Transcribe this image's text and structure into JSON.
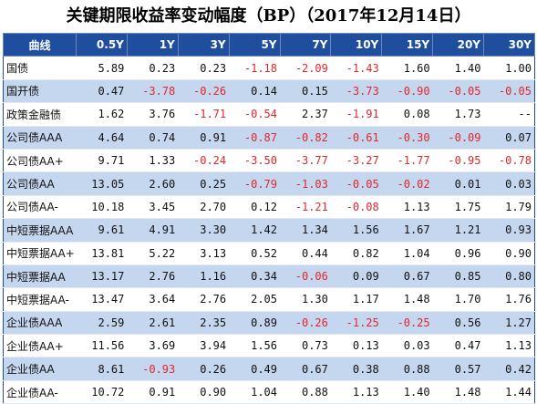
{
  "title": "关键期限收益率变动幅度（BP）（2017年12月14日）",
  "columns": [
    "曲线",
    "0.5Y",
    "1Y",
    "3Y",
    "5Y",
    "7Y",
    "10Y",
    "15Y",
    "20Y",
    "30Y"
  ],
  "rows": [
    {
      "name": "国债",
      "values": [
        "5.89",
        "0.23",
        "0.23",
        "-1.18",
        "-2.09",
        "-1.43",
        "1.60",
        "1.40",
        "1.00"
      ]
    },
    {
      "name": "国开债",
      "values": [
        "0.47",
        "-3.78",
        "-0.26",
        "0.14",
        "0.15",
        "-3.73",
        "-0.90",
        "-0.05",
        "-0.05"
      ]
    },
    {
      "name": "政策金融债",
      "values": [
        "1.62",
        "3.76",
        "-1.71",
        "-0.54",
        "2.37",
        "-1.91",
        "0.08",
        "1.73",
        "--"
      ]
    },
    {
      "name": "公司债AAA",
      "values": [
        "4.64",
        "0.74",
        "0.91",
        "-0.87",
        "-0.82",
        "-0.61",
        "-0.30",
        "-0.09",
        "0.07"
      ]
    },
    {
      "name": "公司债AA+",
      "values": [
        "9.71",
        "1.33",
        "-0.24",
        "-3.50",
        "-3.77",
        "-3.27",
        "-1.77",
        "-0.95",
        "-0.78"
      ]
    },
    {
      "name": "公司债AA",
      "values": [
        "13.05",
        "2.60",
        "0.25",
        "-0.79",
        "-1.03",
        "-0.05",
        "-0.02",
        "0.01",
        "0.03"
      ]
    },
    {
      "name": "公司债AA-",
      "values": [
        "10.18",
        "3.45",
        "2.70",
        "0.12",
        "-1.21",
        "-0.08",
        "1.13",
        "1.75",
        "1.79"
      ]
    },
    {
      "name": "中短票据AAA",
      "values": [
        "9.61",
        "4.91",
        "3.30",
        "1.42",
        "1.34",
        "1.56",
        "1.67",
        "1.21",
        "0.93"
      ]
    },
    {
      "name": "中短票据AA+",
      "values": [
        "13.81",
        "5.22",
        "3.13",
        "0.52",
        "0.44",
        "0.82",
        "1.04",
        "0.96",
        "0.90"
      ]
    },
    {
      "name": "中短票据AA",
      "values": [
        "13.17",
        "2.76",
        "1.16",
        "0.34",
        "-0.06",
        "0.09",
        "0.67",
        "0.85",
        "0.80"
      ]
    },
    {
      "name": "中短票据AA-",
      "values": [
        "13.47",
        "3.64",
        "2.76",
        "2.05",
        "1.30",
        "1.17",
        "1.48",
        "1.70",
        "1.76"
      ]
    },
    {
      "name": "企业债AAA",
      "values": [
        "2.59",
        "2.61",
        "2.35",
        "0.89",
        "-0.26",
        "-1.25",
        "-0.25",
        "0.56",
        "1.27"
      ]
    },
    {
      "name": "企业债AA+",
      "values": [
        "11.56",
        "3.69",
        "3.94",
        "1.56",
        "0.73",
        "0.13",
        "0.03",
        "0.47",
        "1.13"
      ]
    },
    {
      "name": "企业债AA",
      "values": [
        "8.61",
        "-0.93",
        "0.26",
        "0.49",
        "0.67",
        "0.38",
        "0.88",
        "0.57",
        "0.42"
      ]
    },
    {
      "name": "企业债AA-",
      "values": [
        "10.72",
        "0.91",
        "0.90",
        "1.04",
        "0.88",
        "1.13",
        "1.40",
        "1.48",
        "1.44"
      ]
    }
  ],
  "colors": {
    "header_bg": "#1f4e9e",
    "header_text": "#ffffff",
    "alt_row_bg": "#c5d6ef",
    "negative": "#e3262c"
  }
}
